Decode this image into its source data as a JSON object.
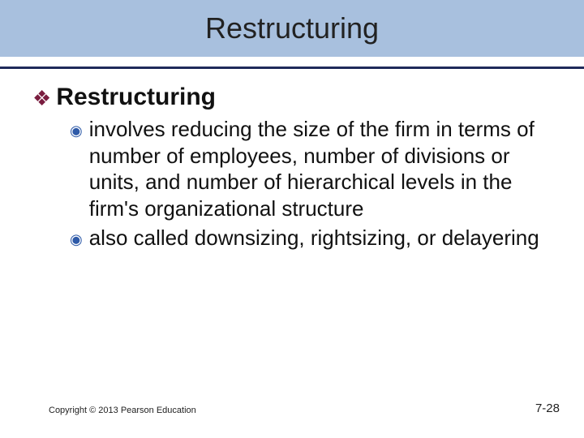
{
  "title": "Restructuring",
  "heading": {
    "bullet_color": "#7a1d3f",
    "text": "Restructuring"
  },
  "bullets": [
    {
      "icon_color": "#2e5aa8",
      "text": "involves reducing the size of the firm in terms of number of employees, number of divisions or units, and number of hierarchical levels in the firm's organizational structure"
    },
    {
      "icon_color": "#2e5aa8",
      "text": "also called downsizing, rightsizing, or delayering"
    }
  ],
  "footer": {
    "copyright": "Copyright © 2013 Pearson Education",
    "page": "7-28"
  },
  "colors": {
    "title_bar_bg": "#a8c0de",
    "divider": "#1f2a5a",
    "body_bg": "#ffffff"
  }
}
